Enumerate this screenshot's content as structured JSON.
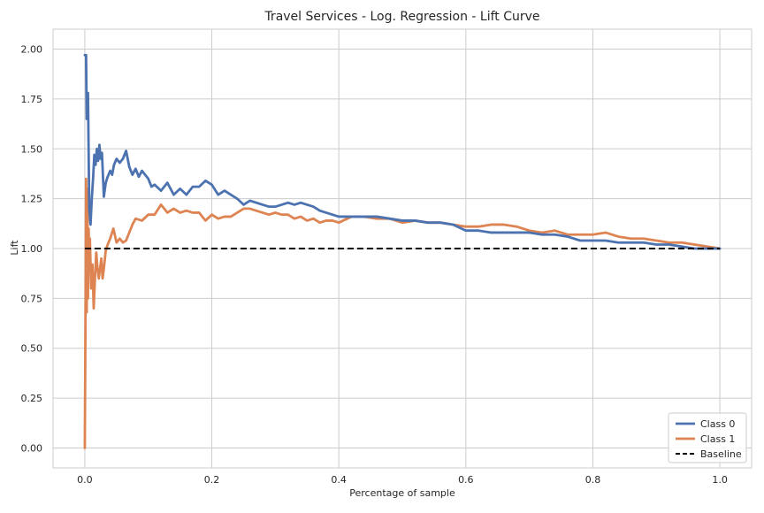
{
  "chart_data": {
    "type": "line",
    "title": "Travel Services  - Log. Regression - Lift Curve",
    "xlabel": "Percentage of sample",
    "ylabel": "Lift",
    "xlim": [
      -0.05,
      1.05
    ],
    "ylim": [
      -0.1,
      2.1
    ],
    "xticks": [
      0.0,
      0.2,
      0.4,
      0.6,
      0.8,
      1.0
    ],
    "xtick_labels": [
      "0.0",
      "0.2",
      "0.4",
      "0.6",
      "0.8",
      "1.0"
    ],
    "yticks": [
      0.0,
      0.25,
      0.5,
      0.75,
      1.0,
      1.25,
      1.5,
      1.75,
      2.0
    ],
    "ytick_labels": [
      "0.00",
      "0.25",
      "0.50",
      "0.75",
      "1.00",
      "1.25",
      "1.50",
      "1.75",
      "2.00"
    ],
    "grid": true,
    "legend_position": "bottom-right",
    "series": [
      {
        "name": "Class 0",
        "color": "#4c72b0",
        "style": "solid",
        "points": [
          [
            0.0,
            1.97
          ],
          [
            0.002,
            1.97
          ],
          [
            0.003,
            1.65
          ],
          [
            0.005,
            1.78
          ],
          [
            0.007,
            1.2
          ],
          [
            0.009,
            1.12
          ],
          [
            0.011,
            1.25
          ],
          [
            0.013,
            1.35
          ],
          [
            0.015,
            1.47
          ],
          [
            0.017,
            1.42
          ],
          [
            0.019,
            1.5
          ],
          [
            0.021,
            1.44
          ],
          [
            0.023,
            1.52
          ],
          [
            0.025,
            1.45
          ],
          [
            0.027,
            1.48
          ],
          [
            0.03,
            1.26
          ],
          [
            0.033,
            1.33
          ],
          [
            0.036,
            1.36
          ],
          [
            0.04,
            1.39
          ],
          [
            0.043,
            1.37
          ],
          [
            0.046,
            1.42
          ],
          [
            0.05,
            1.45
          ],
          [
            0.055,
            1.43
          ],
          [
            0.06,
            1.45
          ],
          [
            0.065,
            1.49
          ],
          [
            0.07,
            1.41
          ],
          [
            0.075,
            1.37
          ],
          [
            0.08,
            1.4
          ],
          [
            0.085,
            1.36
          ],
          [
            0.09,
            1.39
          ],
          [
            0.1,
            1.35
          ],
          [
            0.105,
            1.31
          ],
          [
            0.11,
            1.32
          ],
          [
            0.12,
            1.29
          ],
          [
            0.13,
            1.33
          ],
          [
            0.14,
            1.27
          ],
          [
            0.15,
            1.3
          ],
          [
            0.16,
            1.27
          ],
          [
            0.17,
            1.31
          ],
          [
            0.18,
            1.31
          ],
          [
            0.19,
            1.34
          ],
          [
            0.2,
            1.32
          ],
          [
            0.21,
            1.27
          ],
          [
            0.22,
            1.29
          ],
          [
            0.23,
            1.27
          ],
          [
            0.24,
            1.25
          ],
          [
            0.25,
            1.22
          ],
          [
            0.26,
            1.24
          ],
          [
            0.27,
            1.23
          ],
          [
            0.28,
            1.22
          ],
          [
            0.29,
            1.21
          ],
          [
            0.3,
            1.21
          ],
          [
            0.31,
            1.22
          ],
          [
            0.32,
            1.23
          ],
          [
            0.33,
            1.22
          ],
          [
            0.34,
            1.23
          ],
          [
            0.35,
            1.22
          ],
          [
            0.36,
            1.21
          ],
          [
            0.37,
            1.19
          ],
          [
            0.38,
            1.18
          ],
          [
            0.39,
            1.17
          ],
          [
            0.4,
            1.16
          ],
          [
            0.42,
            1.16
          ],
          [
            0.44,
            1.16
          ],
          [
            0.46,
            1.16
          ],
          [
            0.48,
            1.15
          ],
          [
            0.5,
            1.14
          ],
          [
            0.52,
            1.14
          ],
          [
            0.54,
            1.13
          ],
          [
            0.56,
            1.13
          ],
          [
            0.58,
            1.12
          ],
          [
            0.6,
            1.09
          ],
          [
            0.62,
            1.09
          ],
          [
            0.64,
            1.08
          ],
          [
            0.66,
            1.08
          ],
          [
            0.68,
            1.08
          ],
          [
            0.7,
            1.08
          ],
          [
            0.72,
            1.07
          ],
          [
            0.74,
            1.07
          ],
          [
            0.76,
            1.06
          ],
          [
            0.78,
            1.04
          ],
          [
            0.8,
            1.04
          ],
          [
            0.82,
            1.04
          ],
          [
            0.84,
            1.03
          ],
          [
            0.86,
            1.03
          ],
          [
            0.88,
            1.03
          ],
          [
            0.9,
            1.02
          ],
          [
            0.92,
            1.02
          ],
          [
            0.94,
            1.01
          ],
          [
            0.96,
            1.0
          ],
          [
            0.98,
            1.0
          ],
          [
            1.0,
            1.0
          ]
        ]
      },
      {
        "name": "Class 1",
        "color": "#dd8452",
        "style": "solid",
        "points": [
          [
            0.0,
            0.0
          ],
          [
            0.001,
            0.6
          ],
          [
            0.002,
            1.35
          ],
          [
            0.003,
            0.68
          ],
          [
            0.004,
            1.3
          ],
          [
            0.005,
            0.75
          ],
          [
            0.006,
            1.1
          ],
          [
            0.007,
            0.95
          ],
          [
            0.008,
            1.05
          ],
          [
            0.01,
            0.8
          ],
          [
            0.012,
            0.92
          ],
          [
            0.014,
            0.7
          ],
          [
            0.016,
            0.85
          ],
          [
            0.018,
            0.98
          ],
          [
            0.02,
            0.9
          ],
          [
            0.022,
            0.85
          ],
          [
            0.024,
            0.9
          ],
          [
            0.026,
            0.95
          ],
          [
            0.028,
            0.85
          ],
          [
            0.03,
            0.9
          ],
          [
            0.033,
            0.99
          ],
          [
            0.036,
            1.02
          ],
          [
            0.04,
            1.05
          ],
          [
            0.045,
            1.1
          ],
          [
            0.05,
            1.03
          ],
          [
            0.055,
            1.05
          ],
          [
            0.06,
            1.03
          ],
          [
            0.065,
            1.04
          ],
          [
            0.07,
            1.08
          ],
          [
            0.075,
            1.12
          ],
          [
            0.08,
            1.15
          ],
          [
            0.09,
            1.14
          ],
          [
            0.1,
            1.17
          ],
          [
            0.11,
            1.17
          ],
          [
            0.12,
            1.22
          ],
          [
            0.13,
            1.18
          ],
          [
            0.14,
            1.2
          ],
          [
            0.15,
            1.18
          ],
          [
            0.16,
            1.19
          ],
          [
            0.17,
            1.18
          ],
          [
            0.18,
            1.18
          ],
          [
            0.19,
            1.14
          ],
          [
            0.2,
            1.17
          ],
          [
            0.21,
            1.15
          ],
          [
            0.22,
            1.16
          ],
          [
            0.23,
            1.16
          ],
          [
            0.24,
            1.18
          ],
          [
            0.25,
            1.2
          ],
          [
            0.26,
            1.2
          ],
          [
            0.27,
            1.19
          ],
          [
            0.28,
            1.18
          ],
          [
            0.29,
            1.17
          ],
          [
            0.3,
            1.18
          ],
          [
            0.31,
            1.17
          ],
          [
            0.32,
            1.17
          ],
          [
            0.33,
            1.15
          ],
          [
            0.34,
            1.16
          ],
          [
            0.35,
            1.14
          ],
          [
            0.36,
            1.15
          ],
          [
            0.37,
            1.13
          ],
          [
            0.38,
            1.14
          ],
          [
            0.39,
            1.14
          ],
          [
            0.4,
            1.13
          ],
          [
            0.42,
            1.16
          ],
          [
            0.44,
            1.16
          ],
          [
            0.46,
            1.15
          ],
          [
            0.48,
            1.15
          ],
          [
            0.5,
            1.13
          ],
          [
            0.52,
            1.14
          ],
          [
            0.54,
            1.13
          ],
          [
            0.56,
            1.13
          ],
          [
            0.58,
            1.12
          ],
          [
            0.6,
            1.11
          ],
          [
            0.62,
            1.11
          ],
          [
            0.64,
            1.12
          ],
          [
            0.66,
            1.12
          ],
          [
            0.68,
            1.11
          ],
          [
            0.7,
            1.09
          ],
          [
            0.72,
            1.08
          ],
          [
            0.74,
            1.09
          ],
          [
            0.76,
            1.07
          ],
          [
            0.78,
            1.07
          ],
          [
            0.8,
            1.07
          ],
          [
            0.82,
            1.08
          ],
          [
            0.84,
            1.06
          ],
          [
            0.86,
            1.05
          ],
          [
            0.88,
            1.05
          ],
          [
            0.9,
            1.04
          ],
          [
            0.92,
            1.03
          ],
          [
            0.94,
            1.03
          ],
          [
            0.96,
            1.02
          ],
          [
            0.98,
            1.01
          ],
          [
            1.0,
            1.0
          ]
        ]
      },
      {
        "name": "Baseline",
        "color": "#000000",
        "style": "dashed",
        "points": [
          [
            0.0,
            1.0
          ],
          [
            1.0,
            1.0
          ]
        ]
      }
    ]
  }
}
